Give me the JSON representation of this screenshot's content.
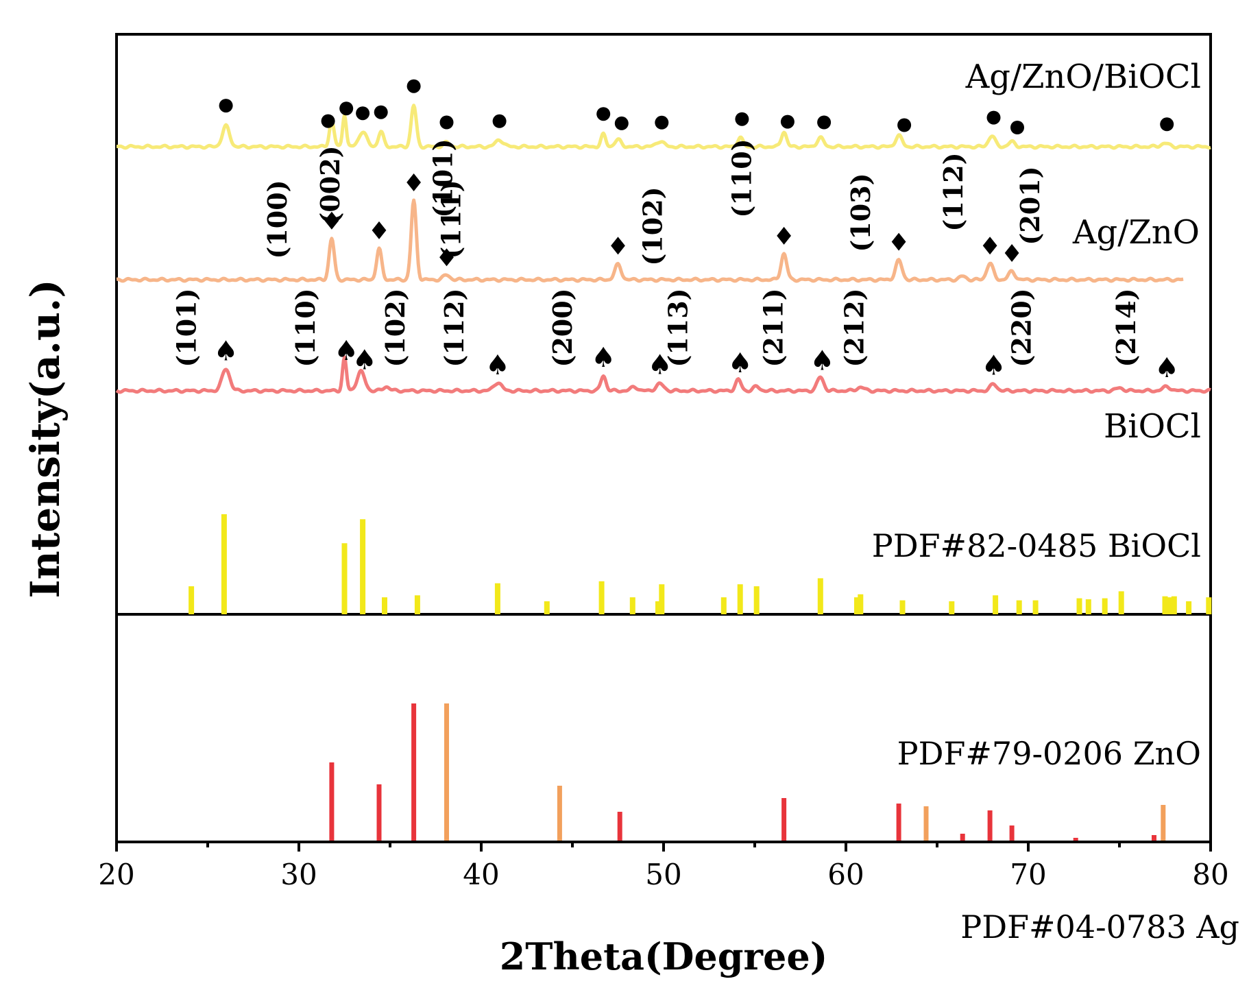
{
  "chart_data": {
    "type": "line",
    "ylabel": "Intensity(a.u.)",
    "xlabel": "2Theta(Degree)",
    "xlim": [
      20,
      80
    ],
    "x_ticks": [
      "20",
      "30",
      "40",
      "50",
      "60",
      "70",
      "80"
    ],
    "colors": {
      "ag_zno_biocl": "#f7ea78",
      "ag_zno": "#f7b589",
      "biocl": "#f27b7b",
      "ref_biocl": "#f2e81a",
      "ref_zno": "#e8343b",
      "ref_ag": "#f2a05c"
    },
    "series": [
      {
        "key": "ag_zno_biocl",
        "name": "Ag/ZnO/BiOCl",
        "peaks": [
          {
            "x": 26.0,
            "h": 30,
            "w": 0.28
          },
          {
            "x": 31.8,
            "h": 38,
            "w": 0.18
          },
          {
            "x": 32.5,
            "h": 48,
            "w": 0.14
          },
          {
            "x": 33.5,
            "h": 22,
            "w": 0.3
          },
          {
            "x": 34.5,
            "h": 22,
            "w": 0.2
          },
          {
            "x": 36.3,
            "h": 60,
            "w": 0.2
          },
          {
            "x": 38.1,
            "h": 6,
            "w": 0.25
          },
          {
            "x": 41.0,
            "h": 10,
            "w": 0.3
          },
          {
            "x": 46.7,
            "h": 18,
            "w": 0.18
          },
          {
            "x": 47.5,
            "h": 10,
            "w": 0.25
          },
          {
            "x": 49.8,
            "h": 8,
            "w": 0.3
          },
          {
            "x": 54.2,
            "h": 14,
            "w": 0.2
          },
          {
            "x": 56.6,
            "h": 22,
            "w": 0.2
          },
          {
            "x": 58.6,
            "h": 13,
            "w": 0.25
          },
          {
            "x": 62.9,
            "h": 16,
            "w": 0.25
          },
          {
            "x": 68.0,
            "h": 16,
            "w": 0.25
          },
          {
            "x": 69.1,
            "h": 7,
            "w": 0.25
          },
          {
            "x": 77.5,
            "h": 5,
            "w": 0.3
          }
        ],
        "markers": [
          26.0,
          31.6,
          32.6,
          33.5,
          34.5,
          36.3,
          38.1,
          41.0,
          46.7,
          47.7,
          49.9,
          54.3,
          56.8,
          58.8,
          63.2,
          68.1,
          69.4,
          77.6
        ]
      },
      {
        "key": "ag_zno",
        "name": "Ag/ZnO",
        "peaks": [
          {
            "x": 31.8,
            "h": 60,
            "w": 0.2
          },
          {
            "x": 34.4,
            "h": 45,
            "w": 0.2
          },
          {
            "x": 36.3,
            "h": 115,
            "w": 0.2
          },
          {
            "x": 38.1,
            "h": 7,
            "w": 0.25
          },
          {
            "x": 47.5,
            "h": 22,
            "w": 0.25
          },
          {
            "x": 56.6,
            "h": 38,
            "w": 0.22
          },
          {
            "x": 62.9,
            "h": 28,
            "w": 0.25
          },
          {
            "x": 66.4,
            "h": 5,
            "w": 0.25
          },
          {
            "x": 67.9,
            "h": 24,
            "w": 0.25
          },
          {
            "x": 69.1,
            "h": 12,
            "w": 0.25
          }
        ],
        "markers": [
          31.8,
          34.4,
          36.3,
          38.1,
          47.5,
          56.6,
          62.9,
          67.9,
          69.1
        ],
        "hkl": [
          "(100)",
          "(002)",
          "(101)",
          "(111)",
          "(102)",
          "(110)",
          "(103)",
          "(112)",
          "(201)"
        ]
      },
      {
        "key": "biocl",
        "name": "BiOCl",
        "peaks": [
          {
            "x": 26.0,
            "h": 32,
            "w": 0.3
          },
          {
            "x": 32.5,
            "h": 48,
            "w": 0.15
          },
          {
            "x": 33.4,
            "h": 28,
            "w": 0.3
          },
          {
            "x": 34.8,
            "h": 6,
            "w": 0.25
          },
          {
            "x": 40.9,
            "h": 12,
            "w": 0.3
          },
          {
            "x": 46.7,
            "h": 22,
            "w": 0.2
          },
          {
            "x": 48.4,
            "h": 6,
            "w": 0.25
          },
          {
            "x": 49.8,
            "h": 10,
            "w": 0.3
          },
          {
            "x": 54.1,
            "h": 16,
            "w": 0.22
          },
          {
            "x": 55.1,
            "h": 6,
            "w": 0.25
          },
          {
            "x": 58.6,
            "h": 20,
            "w": 0.25
          },
          {
            "x": 60.8,
            "h": 5,
            "w": 0.3
          },
          {
            "x": 68.1,
            "h": 10,
            "w": 0.25
          },
          {
            "x": 75.0,
            "h": 4,
            "w": 0.3
          },
          {
            "x": 77.6,
            "h": 6,
            "w": 0.3
          }
        ],
        "markers": [
          26.0,
          32.6,
          33.6,
          40.9,
          46.7,
          49.8,
          54.2,
          58.7,
          68.1,
          77.6
        ],
        "hkl": [
          "(101)",
          "(110)",
          "(102)",
          "(112)",
          "(200)",
          "(113)",
          "(211)",
          "(212)",
          "(220)",
          "(214)"
        ]
      }
    ],
    "references": [
      {
        "key": "ref_biocl",
        "label": "PDF#82-0485 BiOCl",
        "lines": [
          {
            "x": 24.1,
            "i": 28
          },
          {
            "x": 25.9,
            "i": 100
          },
          {
            "x": 32.5,
            "i": 71
          },
          {
            "x": 33.5,
            "i": 95
          },
          {
            "x": 34.7,
            "i": 17
          },
          {
            "x": 36.5,
            "i": 19
          },
          {
            "x": 40.9,
            "i": 31
          },
          {
            "x": 43.6,
            "i": 13
          },
          {
            "x": 46.6,
            "i": 33
          },
          {
            "x": 48.3,
            "i": 17
          },
          {
            "x": 49.7,
            "i": 13
          },
          {
            "x": 49.9,
            "i": 30
          },
          {
            "x": 53.3,
            "i": 17
          },
          {
            "x": 54.2,
            "i": 30
          },
          {
            "x": 55.1,
            "i": 28
          },
          {
            "x": 58.6,
            "i": 36
          },
          {
            "x": 60.6,
            "i": 17
          },
          {
            "x": 60.8,
            "i": 20
          },
          {
            "x": 63.1,
            "i": 14
          },
          {
            "x": 65.8,
            "i": 13
          },
          {
            "x": 68.2,
            "i": 19
          },
          {
            "x": 69.5,
            "i": 14
          },
          {
            "x": 70.4,
            "i": 14
          },
          {
            "x": 72.8,
            "i": 16
          },
          {
            "x": 73.3,
            "i": 15
          },
          {
            "x": 74.2,
            "i": 16
          },
          {
            "x": 75.1,
            "i": 23
          },
          {
            "x": 77.5,
            "i": 18
          },
          {
            "x": 77.8,
            "i": 17
          },
          {
            "x": 78.0,
            "i": 18
          },
          {
            "x": 78.8,
            "i": 13
          },
          {
            "x": 79.9,
            "i": 17
          }
        ]
      },
      {
        "key": "ref_zno",
        "label": "PDF#79-0206 ZnO",
        "lines": [
          {
            "x": 31.8,
            "i": 57
          },
          {
            "x": 34.4,
            "i": 41
          },
          {
            "x": 36.3,
            "i": 100
          },
          {
            "x": 47.6,
            "i": 21
          },
          {
            "x": 56.6,
            "i": 31
          },
          {
            "x": 62.9,
            "i": 27
          },
          {
            "x": 66.4,
            "i": 5
          },
          {
            "x": 67.9,
            "i": 22
          },
          {
            "x": 69.1,
            "i": 11
          },
          {
            "x": 72.6,
            "i": 2
          },
          {
            "x": 76.9,
            "i": 4
          }
        ]
      },
      {
        "key": "ref_ag",
        "label": "PDF#04-0783 Ag",
        "lines": [
          {
            "x": 38.1,
            "i": 100
          },
          {
            "x": 44.3,
            "i": 40
          },
          {
            "x": 64.4,
            "i": 25
          },
          {
            "x": 77.4,
            "i": 26
          }
        ]
      }
    ]
  }
}
